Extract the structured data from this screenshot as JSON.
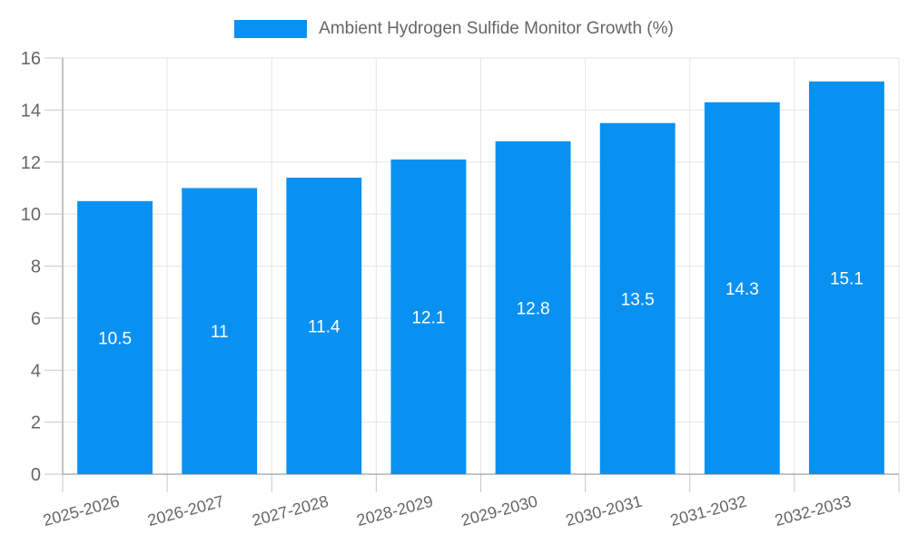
{
  "legend": {
    "label": "Ambient Hydrogen Sulfide Monitor Growth (%)"
  },
  "chart_data": {
    "type": "bar",
    "title": "Ambient Hydrogen Sulfide Monitor Growth (%)",
    "legend_position": "top",
    "categories": [
      "2025-2026",
      "2026-2027",
      "2027-2028",
      "2028-2029",
      "2029-2030",
      "2030-2031",
      "2031-2032",
      "2032-2033"
    ],
    "series": [
      {
        "name": "Ambient Hydrogen Sulfide Monitor Growth (%)",
        "values": [
          10.5,
          11,
          11.4,
          12.1,
          12.8,
          13.5,
          14.3,
          15.1
        ],
        "value_labels": [
          "10.5",
          "11",
          "11.4",
          "12.1",
          "12.8",
          "13.5",
          "14.3",
          "15.1"
        ]
      }
    ],
    "xlabel": "",
    "ylabel": "",
    "ylim": [
      0,
      16
    ],
    "ytick_step": 2,
    "ytick_labels": [
      "0",
      "2",
      "4",
      "6",
      "8",
      "10",
      "12",
      "14",
      "16"
    ],
    "grid": true,
    "colors": {
      "bar": "#0991f2",
      "grid": "#e6e6e6",
      "axis": "#b0b0b0",
      "tick": "#c9c9c9",
      "tick_label": "#666666",
      "value_label": "#ffffff",
      "legend_text": "#666666"
    }
  }
}
